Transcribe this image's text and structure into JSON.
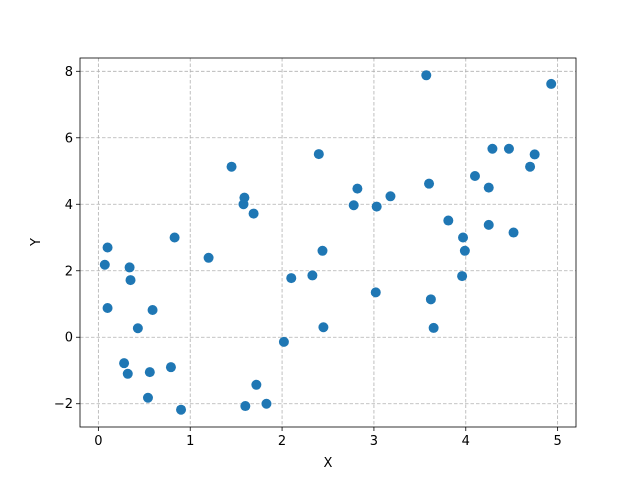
{
  "chart_data": {
    "type": "scatter",
    "xlabel": "X",
    "ylabel": "Y",
    "xlim": [
      -0.2,
      5.2
    ],
    "ylim": [
      -2.7,
      8.4
    ],
    "xticks": [
      0,
      1,
      2,
      3,
      4,
      5
    ],
    "yticks": [
      -2,
      0,
      2,
      4,
      6,
      8
    ],
    "grid": true,
    "marker_color": "#1f77b4",
    "series": [
      {
        "points": [
          [
            0.07,
            2.18
          ],
          [
            0.1,
            2.7
          ],
          [
            0.1,
            0.88
          ],
          [
            0.28,
            -0.78
          ],
          [
            0.32,
            -1.1
          ],
          [
            0.34,
            2.1
          ],
          [
            0.35,
            1.72
          ],
          [
            0.43,
            0.27
          ],
          [
            0.54,
            -1.82
          ],
          [
            0.56,
            -1.05
          ],
          [
            0.59,
            0.82
          ],
          [
            0.79,
            -0.9
          ],
          [
            0.83,
            3.0
          ],
          [
            0.9,
            -2.18
          ],
          [
            1.2,
            2.39
          ],
          [
            1.45,
            5.13
          ],
          [
            1.58,
            4.0
          ],
          [
            1.59,
            4.2
          ],
          [
            1.6,
            -2.07
          ],
          [
            1.69,
            3.72
          ],
          [
            1.72,
            -1.43
          ],
          [
            1.83,
            -2.0
          ],
          [
            2.02,
            -0.14
          ],
          [
            2.1,
            1.78
          ],
          [
            2.33,
            1.86
          ],
          [
            2.4,
            5.51
          ],
          [
            2.44,
            2.6
          ],
          [
            2.45,
            0.3
          ],
          [
            2.78,
            3.97
          ],
          [
            2.82,
            4.47
          ],
          [
            3.02,
            1.35
          ],
          [
            3.03,
            3.93
          ],
          [
            3.18,
            4.24
          ],
          [
            3.57,
            7.88
          ],
          [
            3.6,
            4.62
          ],
          [
            3.62,
            1.14
          ],
          [
            3.65,
            0.28
          ],
          [
            3.81,
            3.51
          ],
          [
            3.96,
            1.84
          ],
          [
            3.97,
            3.0
          ],
          [
            3.99,
            2.6
          ],
          [
            4.1,
            4.85
          ],
          [
            4.25,
            3.38
          ],
          [
            4.25,
            4.5
          ],
          [
            4.29,
            5.67
          ],
          [
            4.47,
            5.67
          ],
          [
            4.52,
            3.15
          ],
          [
            4.7,
            5.13
          ],
          [
            4.75,
            5.5
          ],
          [
            4.93,
            7.62
          ]
        ]
      }
    ]
  }
}
